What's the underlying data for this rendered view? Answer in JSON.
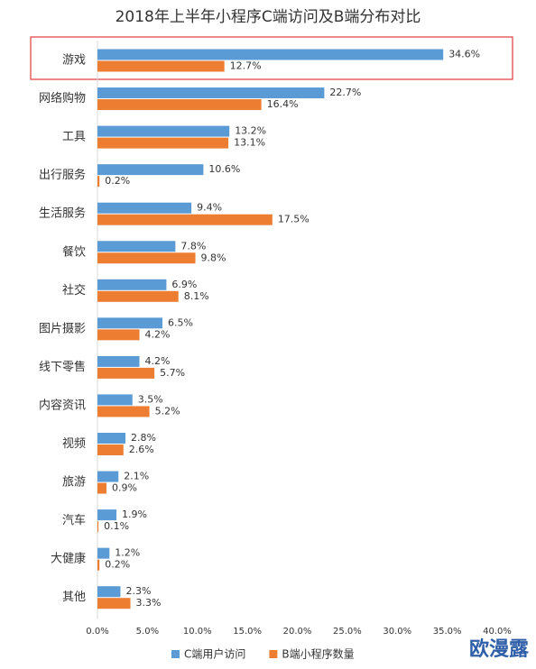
{
  "chart_data": {
    "type": "bar",
    "orientation": "horizontal",
    "title": "2018年上半年小程序C端访问及B端分布对比",
    "categories": [
      "游戏",
      "网络购物",
      "工具",
      "出行服务",
      "生活服务",
      "餐饮",
      "社交",
      "图片摄影",
      "线下零售",
      "内容资讯",
      "视频",
      "旅游",
      "汽车",
      "大健康",
      "其他"
    ],
    "series": [
      {
        "name": "C端用户访问",
        "color": "#5b9bd5",
        "values": [
          34.6,
          22.7,
          13.2,
          10.6,
          9.4,
          7.8,
          6.9,
          6.5,
          4.2,
          3.5,
          2.8,
          2.1,
          1.9,
          1.2,
          2.3
        ],
        "value_labels": [
          "34.6%",
          "22.7%",
          "13.2%",
          "10.6%",
          "9.4%",
          "7.8%",
          "6.9%",
          "6.5%",
          "4.2%",
          "3.5%",
          "2.8%",
          "2.1%",
          "1.9%",
          "1.2%",
          "2.3%"
        ]
      },
      {
        "name": "B端小程序数量",
        "color": "#ed7d31",
        "values": [
          12.7,
          16.4,
          13.1,
          0.2,
          17.5,
          9.8,
          8.1,
          4.2,
          5.7,
          5.2,
          2.6,
          0.9,
          0.1,
          0.2,
          3.3
        ],
        "value_labels": [
          "12.7%",
          "16.4%",
          "13.1%",
          "0.2%",
          "17.5%",
          "9.8%",
          "8.1%",
          "4.2%",
          "5.7%",
          "5.2%",
          "2.6%",
          "0.9%",
          "0.1%",
          "0.2%",
          "3.3%"
        ]
      }
    ],
    "xlim": [
      0,
      40
    ],
    "xticks": [
      {
        "value": 0,
        "label": "0.0%"
      },
      {
        "value": 5,
        "label": "5.0%"
      },
      {
        "value": 10,
        "label": "10.0%"
      },
      {
        "value": 15,
        "label": "15.0%"
      },
      {
        "value": 20,
        "label": "20.0%"
      },
      {
        "value": 25,
        "label": "25.0%"
      },
      {
        "value": 30,
        "label": "30.0%"
      },
      {
        "value": 35,
        "label": "35.0%"
      },
      {
        "value": 40,
        "label": "40.0%"
      }
    ],
    "grid": false,
    "legend": "bottom",
    "watermark": "欧漫露"
  }
}
